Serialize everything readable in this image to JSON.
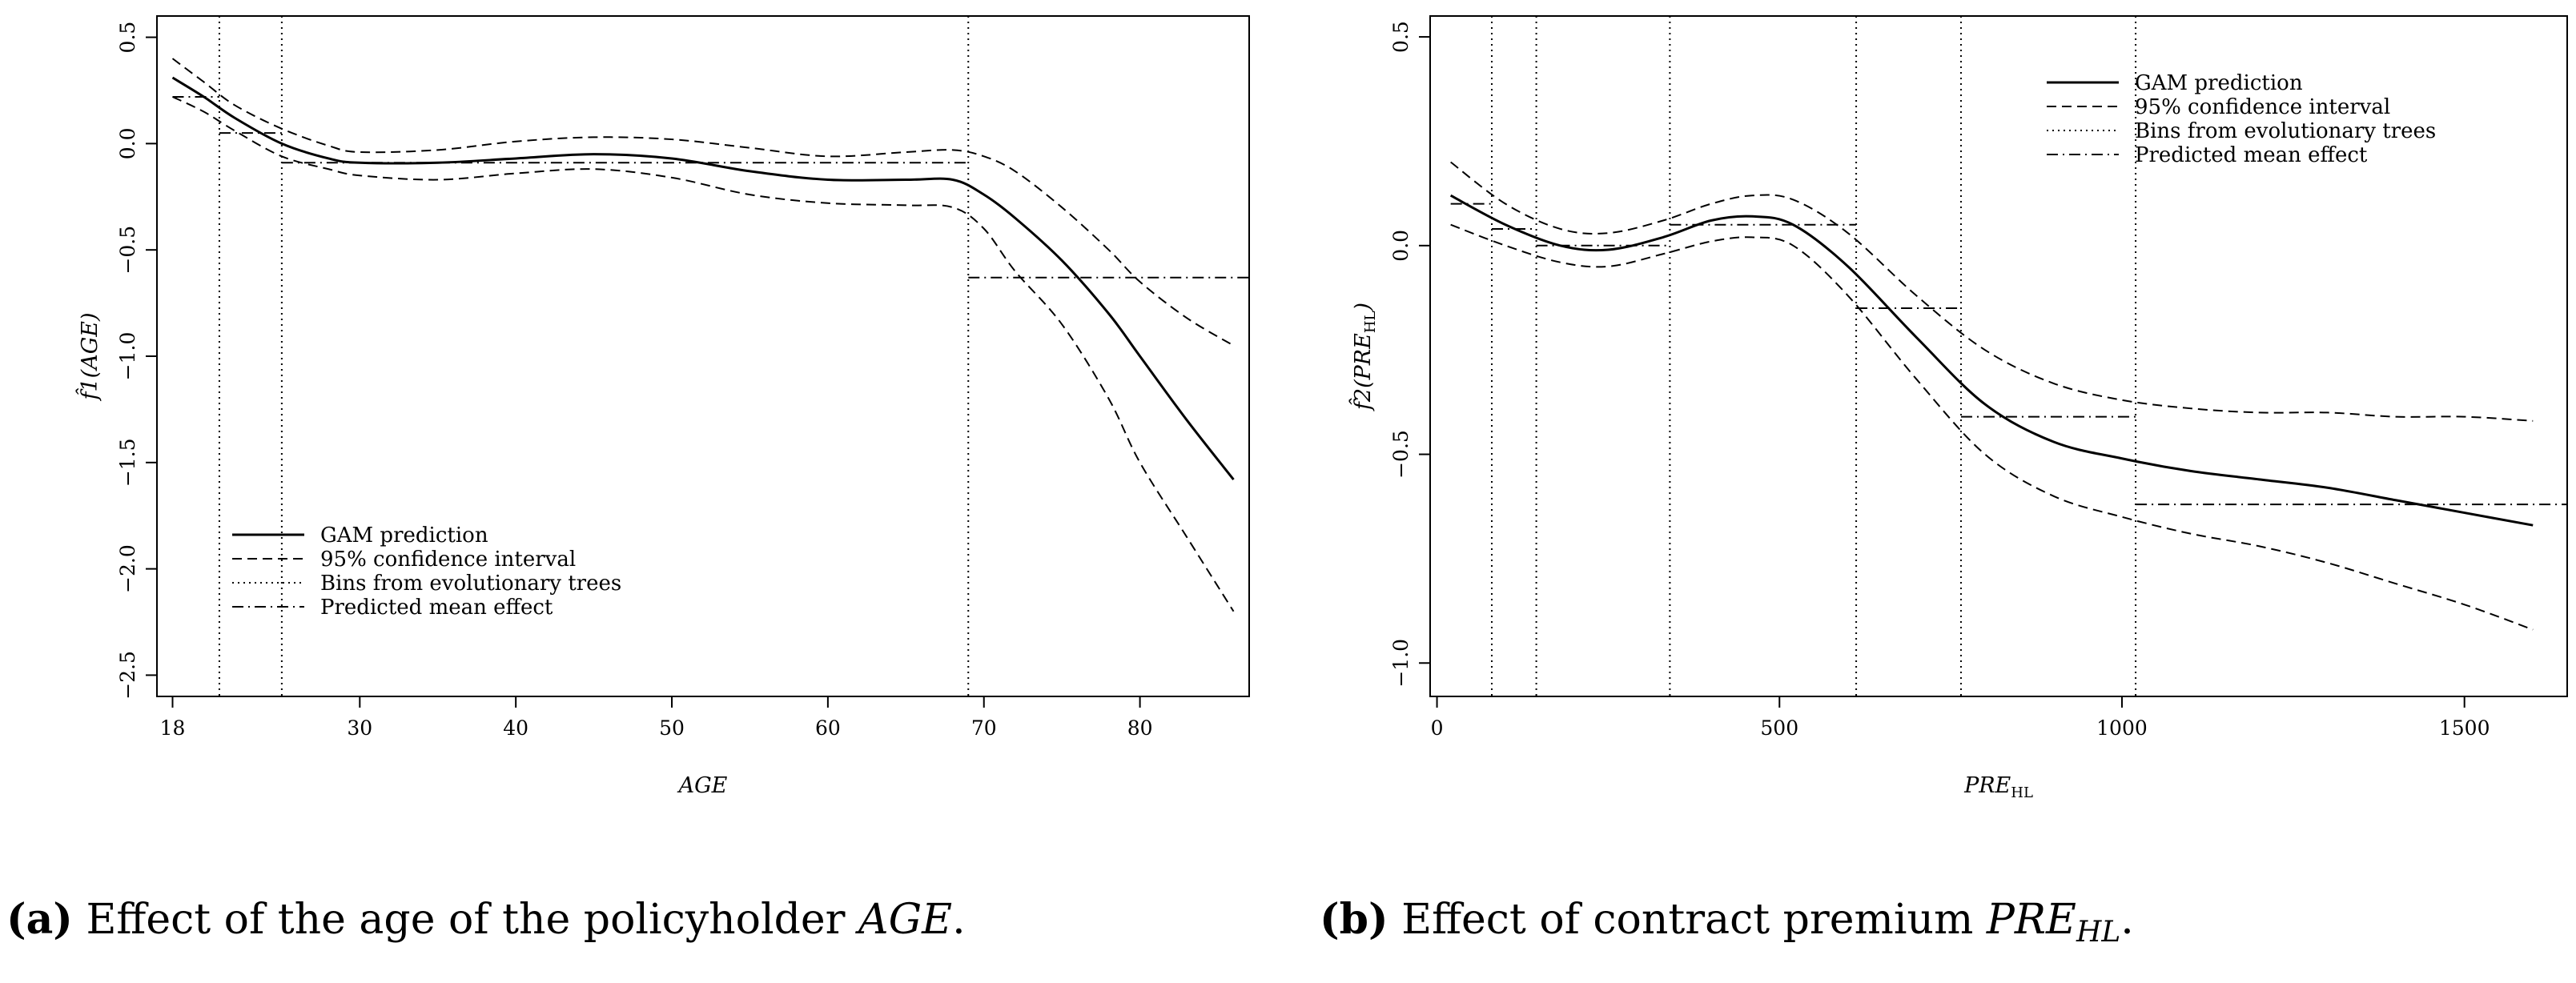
{
  "chart_data": [
    {
      "type": "line",
      "xlabel": "AGE",
      "ylabel": "f̂1(AGE)",
      "xlim": [
        17,
        87
      ],
      "ylim": [
        -2.6,
        0.6
      ],
      "xticks": [
        18,
        30,
        40,
        50,
        60,
        70,
        80
      ],
      "yticks": [
        0.5,
        0.0,
        -0.5,
        -1.0,
        -1.5,
        -2.0,
        -2.5
      ],
      "xtick_labels": [
        "18",
        "30",
        "40",
        "50",
        "60",
        "70",
        "80"
      ],
      "ytick_labels": [
        "0.5",
        "0.0",
        "−0.5",
        "−1.0",
        "−1.5",
        "−2.0",
        "−2.5"
      ],
      "legend_position": "bottom-left",
      "legend": [
        "GAM prediction",
        "95% confidence interval",
        "Bins from evolutionary trees",
        "Predicted mean effect"
      ],
      "series": [
        {
          "name": "GAM prediction",
          "style": "solid",
          "x": [
            18,
            20,
            22,
            25,
            28,
            30,
            35,
            40,
            45,
            50,
            55,
            60,
            65,
            68,
            70,
            72,
            75,
            78,
            80,
            83,
            86
          ],
          "y": [
            0.31,
            0.22,
            0.12,
            0.0,
            -0.07,
            -0.09,
            -0.09,
            -0.07,
            -0.05,
            -0.07,
            -0.13,
            -0.17,
            -0.17,
            -0.17,
            -0.24,
            -0.35,
            -0.55,
            -0.8,
            -1.0,
            -1.3,
            -1.58
          ]
        },
        {
          "name": "95% confidence interval (upper)",
          "style": "dashed",
          "x": [
            18,
            20,
            22,
            25,
            28,
            30,
            35,
            40,
            45,
            50,
            55,
            60,
            65,
            68,
            70,
            72,
            75,
            78,
            80,
            83,
            86
          ],
          "y": [
            0.4,
            0.29,
            0.18,
            0.07,
            -0.01,
            -0.04,
            -0.03,
            0.01,
            0.03,
            0.02,
            -0.02,
            -0.06,
            -0.04,
            -0.03,
            -0.06,
            -0.13,
            -0.3,
            -0.5,
            -0.65,
            -0.82,
            -0.95
          ]
        },
        {
          "name": "95% confidence interval (lower)",
          "style": "dashed",
          "x": [
            18,
            20,
            22,
            25,
            28,
            30,
            35,
            40,
            45,
            50,
            55,
            60,
            65,
            68,
            70,
            72,
            75,
            78,
            80,
            83,
            86
          ],
          "y": [
            0.22,
            0.15,
            0.06,
            -0.06,
            -0.12,
            -0.15,
            -0.17,
            -0.14,
            -0.12,
            -0.16,
            -0.24,
            -0.28,
            -0.29,
            -0.3,
            -0.4,
            -0.6,
            -0.85,
            -1.2,
            -1.5,
            -1.85,
            -2.2
          ]
        },
        {
          "name": "Bins from evolutionary trees",
          "style": "dotted",
          "kind": "vlines",
          "x": [
            21,
            25,
            69
          ]
        },
        {
          "name": "Predicted mean effect",
          "style": "dashdot",
          "kind": "segments",
          "segments": [
            {
              "x0": 18,
              "x1": 21,
              "y": 0.22
            },
            {
              "x0": 21,
              "x1": 25,
              "y": 0.05
            },
            {
              "x0": 25,
              "x1": 69,
              "y": -0.09
            },
            {
              "x0": 69,
              "x1": 87,
              "y": -0.63
            }
          ]
        }
      ]
    },
    {
      "type": "line",
      "xlabel": "PRE",
      "xlabel_sub": "HL",
      "ylabel": "f̂2(PRE",
      "ylabel_sub": "HL",
      "xlim": [
        -10,
        1650
      ],
      "ylim": [
        -1.08,
        0.55
      ],
      "xticks": [
        0,
        500,
        1000,
        1500
      ],
      "yticks": [
        0.5,
        0.0,
        -0.5,
        -1.0
      ],
      "xtick_labels": [
        "0",
        "500",
        "1000",
        "1500"
      ],
      "ytick_labels": [
        "0.5",
        "0.0",
        "−0.5",
        "−1.0"
      ],
      "legend_position": "top-right",
      "legend": [
        "GAM prediction",
        "95% confidence interval",
        "Bins from evolutionary trees",
        "Predicted mean effect"
      ],
      "series": [
        {
          "name": "GAM prediction",
          "style": "solid",
          "x": [
            20,
            100,
            180,
            250,
            330,
            400,
            460,
            520,
            600,
            700,
            800,
            900,
            1000,
            1100,
            1200,
            1300,
            1400,
            1500,
            1600
          ],
          "y": [
            0.12,
            0.05,
            0.0,
            -0.01,
            0.02,
            0.06,
            0.07,
            0.05,
            -0.05,
            -0.22,
            -0.38,
            -0.47,
            -0.51,
            -0.54,
            -0.56,
            -0.58,
            -0.61,
            -0.64,
            -0.67
          ]
        },
        {
          "name": "95% confidence interval (upper)",
          "style": "dashed",
          "x": [
            20,
            100,
            180,
            250,
            330,
            400,
            460,
            520,
            600,
            700,
            800,
            900,
            1000,
            1100,
            1200,
            1300,
            1400,
            1500,
            1600
          ],
          "y": [
            0.2,
            0.1,
            0.04,
            0.03,
            0.06,
            0.1,
            0.12,
            0.11,
            0.03,
            -0.12,
            -0.25,
            -0.33,
            -0.37,
            -0.39,
            -0.4,
            -0.4,
            -0.41,
            -0.41,
            -0.42
          ]
        },
        {
          "name": "95% confidence interval (lower)",
          "style": "dashed",
          "x": [
            20,
            100,
            180,
            250,
            330,
            400,
            460,
            520,
            600,
            700,
            800,
            900,
            1000,
            1100,
            1200,
            1300,
            1400,
            1500,
            1600
          ],
          "y": [
            0.05,
            0.0,
            -0.04,
            -0.05,
            -0.02,
            0.01,
            0.02,
            0.0,
            -0.12,
            -0.32,
            -0.5,
            -0.6,
            -0.65,
            -0.69,
            -0.72,
            -0.76,
            -0.81,
            -0.86,
            -0.92
          ]
        },
        {
          "name": "Bins from evolutionary trees",
          "style": "dotted",
          "kind": "vlines",
          "x": [
            80,
            145,
            340,
            612,
            765,
            1020
          ]
        },
        {
          "name": "Predicted mean effect",
          "style": "dashdot",
          "kind": "segments",
          "segments": [
            {
              "x0": 20,
              "x1": 80,
              "y": 0.1
            },
            {
              "x0": 80,
              "x1": 145,
              "y": 0.04
            },
            {
              "x0": 145,
              "x1": 340,
              "y": 0.0
            },
            {
              "x0": 340,
              "x1": 612,
              "y": 0.05
            },
            {
              "x0": 612,
              "x1": 765,
              "y": -0.15
            },
            {
              "x0": 765,
              "x1": 1020,
              "y": -0.41
            },
            {
              "x0": 1020,
              "x1": 1650,
              "y": -0.62
            }
          ]
        }
      ]
    }
  ],
  "captions": {
    "a": {
      "label": "(a)",
      "text": "Effect of the age of the policyholder",
      "symbol": "AGE",
      "end": "."
    },
    "b": {
      "label": "(b)",
      "text": "Effect of contract premium",
      "symbol": "PRE",
      "sub": "HL",
      "end": "."
    }
  }
}
